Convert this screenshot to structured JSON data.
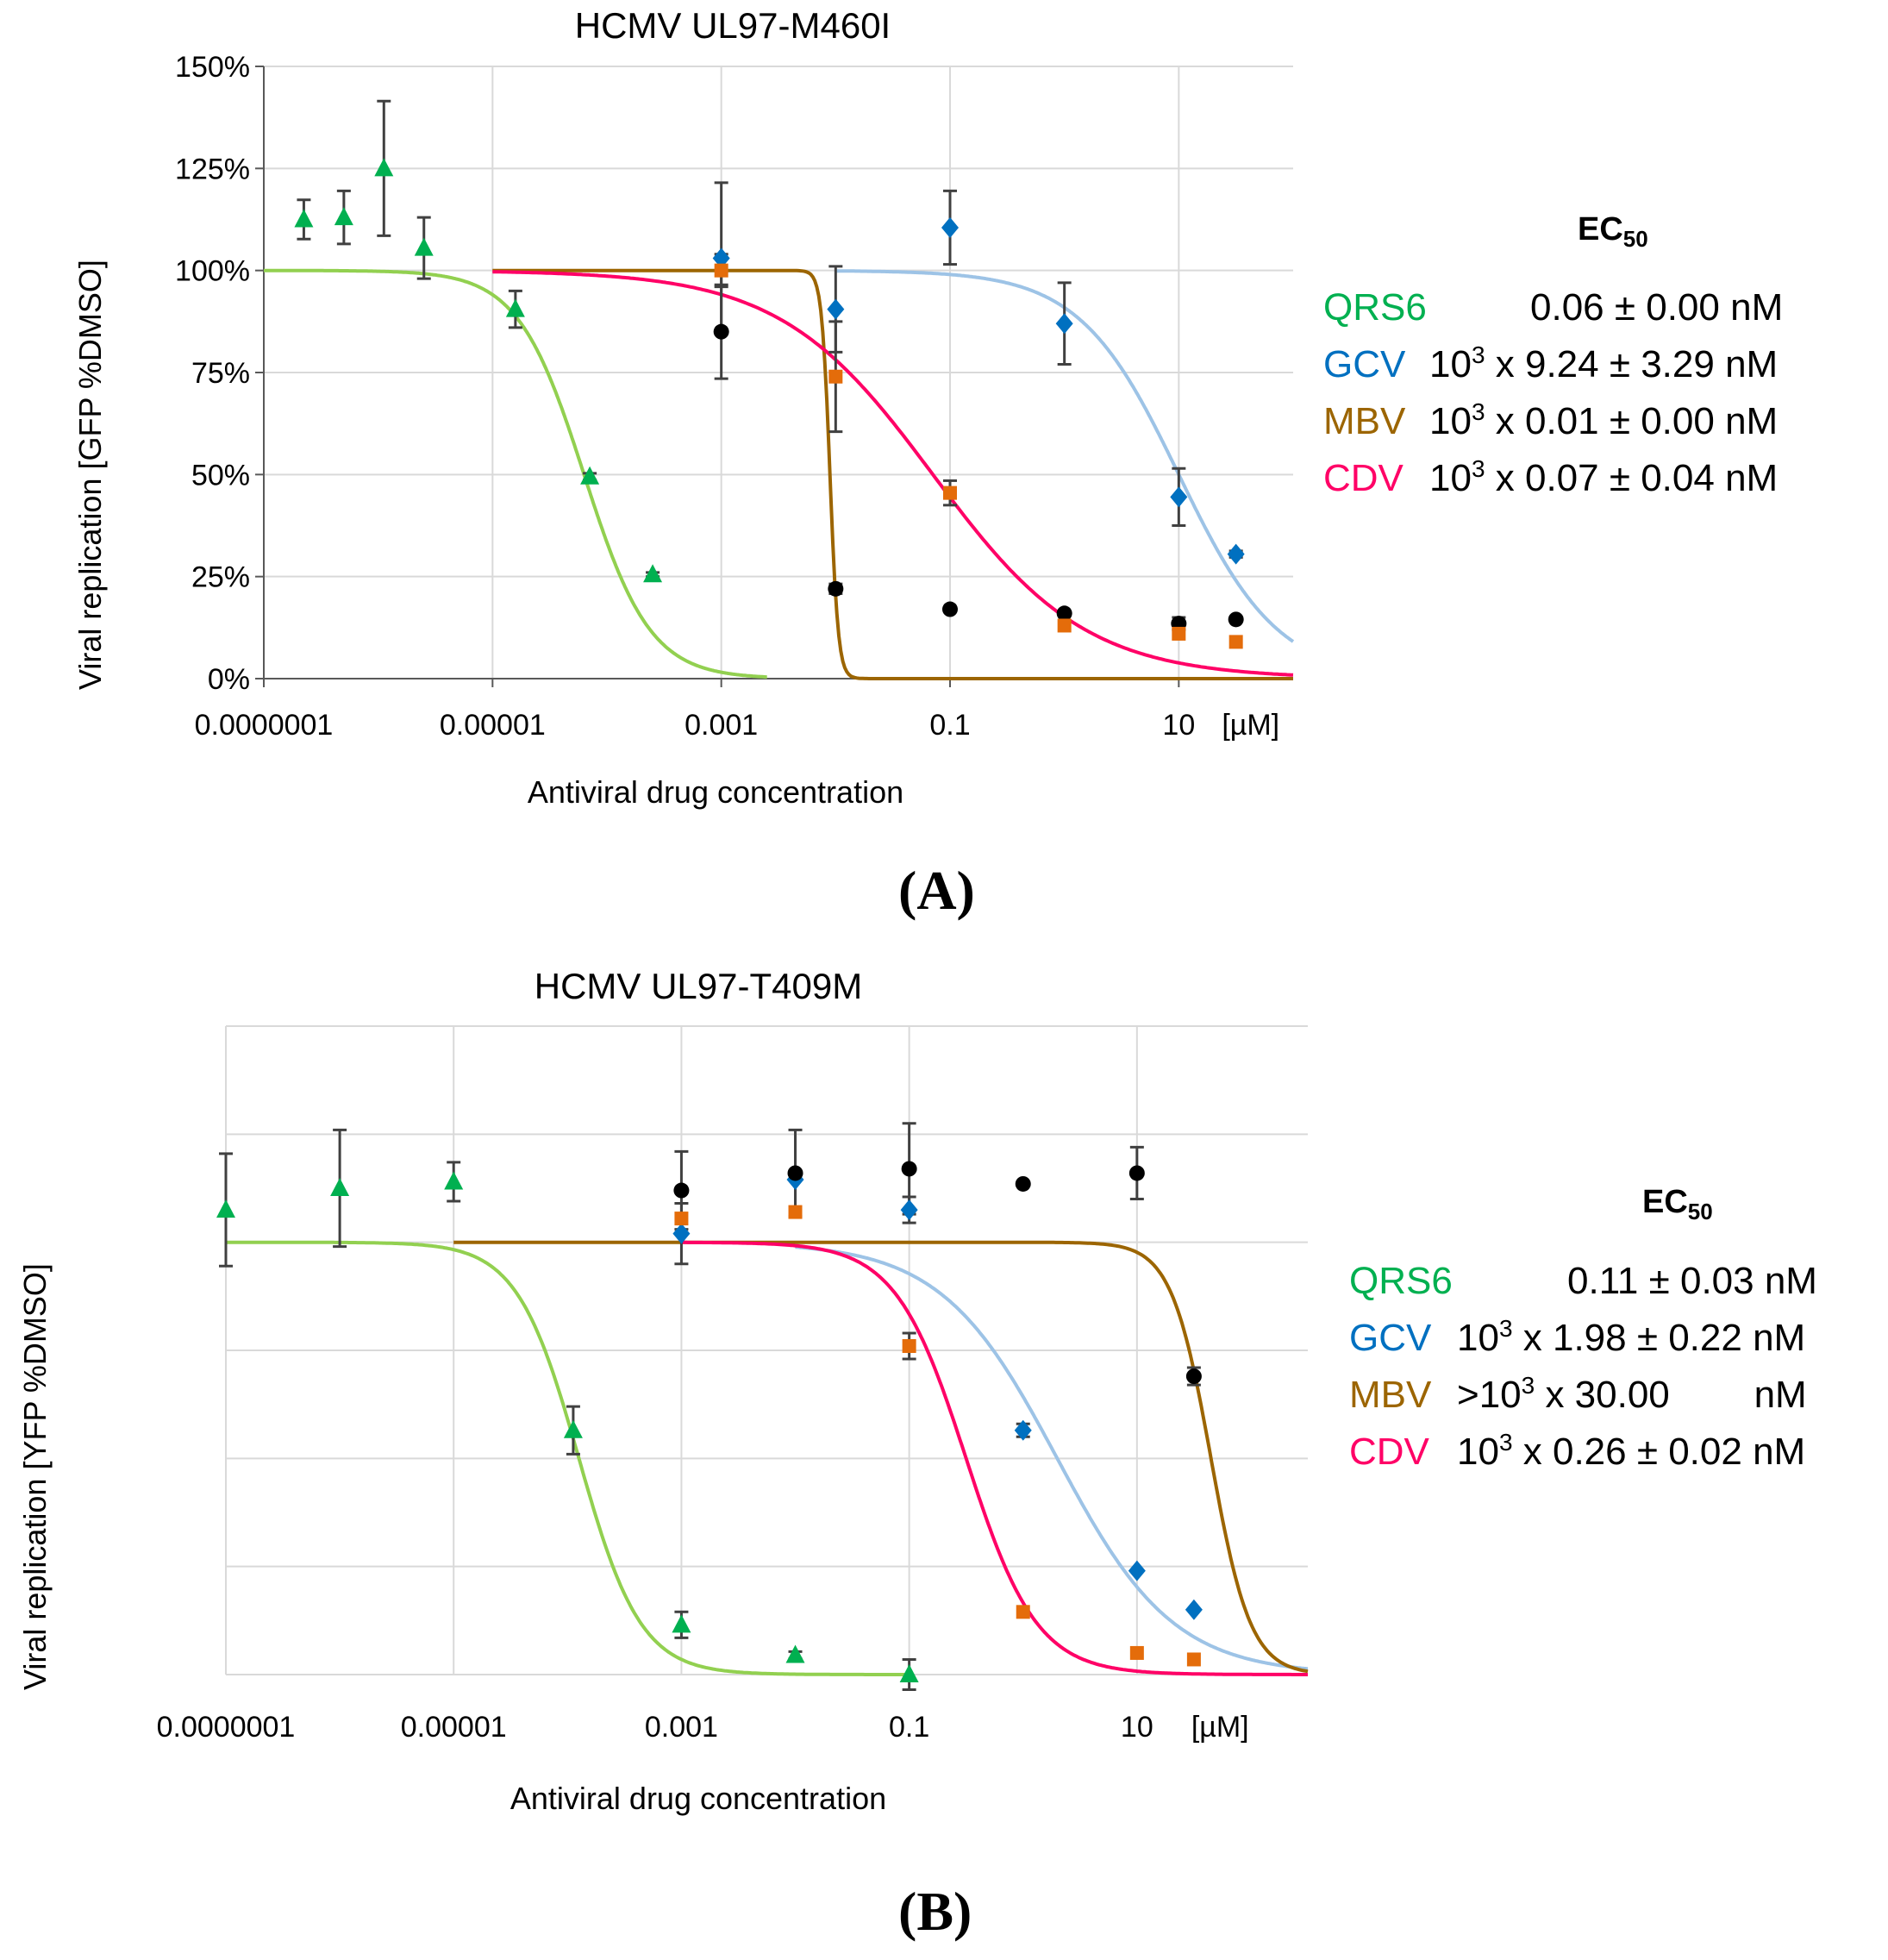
{
  "panels": [
    {
      "label": "(A)",
      "title": "HCMV UL97-M460I",
      "ylabel": "Viral replication [GFP %DMSO]",
      "xlabel": "Antiviral drug concentration",
      "unit": "[µM]",
      "ec50_heading": {
        "text": "EC",
        "sub": "50"
      },
      "legend": [
        {
          "name": "QRS6",
          "color": "#00b050",
          "pre": "",
          "sup": "",
          "value": "0.06 ± 0.00 nM"
        },
        {
          "name": "GCV",
          "color": "#0070c0",
          "pre": "10",
          "sup": "3",
          "value": " x 9.24 ± 3.29 nM"
        },
        {
          "name": "MBV",
          "color": "#9c6500",
          "pre": "10",
          "sup": "3",
          "value": " x 0.01 ± 0.00 nM"
        },
        {
          "name": "CDV",
          "color": "#ff0066",
          "pre": "10",
          "sup": "3",
          "value": " x 0.07 ± 0.04 nM"
        }
      ]
    },
    {
      "label": "(B)",
      "title": "HCMV UL97-T409M",
      "ylabel": "Viral replication [YFP %DMSO]",
      "xlabel": "Antiviral drug concentration",
      "unit": "[µM]",
      "ec50_heading": {
        "text": "EC",
        "sub": "50"
      },
      "legend": [
        {
          "name": "QRS6",
          "color": "#00b050",
          "pre": "",
          "sup": "",
          "value": "0.11 ± 0.03 nM"
        },
        {
          "name": "GCV",
          "color": "#0070c0",
          "pre": "10",
          "sup": "3",
          "value": " x 1.98 ± 0.22 nM"
        },
        {
          "name": "MBV",
          "color": "#9c6500",
          "pre": ">10",
          "sup": "3",
          "value": " x 30.00        nM"
        },
        {
          "name": "CDV",
          "color": "#ff0066",
          "pre": "10",
          "sup": "3",
          "value": " x 0.26 ± 0.02 nM"
        }
      ]
    }
  ],
  "chart_data": [
    {
      "type": "scatter",
      "title": "HCMV UL97-M460I",
      "xlabel": "Antiviral drug concentration",
      "ylabel": "Viral replication [GFP %DMSO]",
      "x_scale": "log10",
      "xlim_log10": [
        -7,
        2
      ],
      "ylim": [
        0,
        150
      ],
      "x_tick_labels": [
        "0.0000001",
        "0.00001",
        "0.001",
        "0.1",
        "10"
      ],
      "x_ticks_log10": [
        -7,
        -5,
        -3,
        -1,
        1
      ],
      "y_tick_labels": [
        "0%",
        "25%",
        "50%",
        "75%",
        "100%",
        "125%",
        "150%"
      ],
      "y_ticks": [
        0,
        25,
        50,
        75,
        100,
        125,
        150
      ],
      "x_unit": "[µM]",
      "series": [
        {
          "name": "QRS6",
          "marker": "triangle",
          "color": "#00b050",
          "fit_color": "#92d050",
          "fit": {
            "top": 100,
            "bottom": 0,
            "log_ec50": -4.2,
            "hill": 1.5,
            "x_start": -7,
            "x_end": -2.6
          },
          "points": [
            {
              "x": -6.65,
              "y": 112.5,
              "err": 4.8
            },
            {
              "x": -6.3,
              "y": 113,
              "err": 6.5
            },
            {
              "x": -5.95,
              "y": 125,
              "err": 16.5
            },
            {
              "x": -5.6,
              "y": 105.5,
              "err": 7.5
            },
            {
              "x": -4.8,
              "y": 90.5,
              "err": 4.5
            },
            {
              "x": -4.15,
              "y": 49.5,
              "err": 0.8
            },
            {
              "x": -3.6,
              "y": 25.5,
              "err": 0.5
            }
          ]
        },
        {
          "name": "GCV",
          "marker": "diamond",
          "color": "#0070c0",
          "fit_color": "#9dc3e6",
          "fit": {
            "top": 100,
            "bottom": 0,
            "log_ec50": 1.0,
            "hill": 1.0,
            "x_start": -2.0,
            "x_end": 2.0
          },
          "points": [
            {
              "x": -3,
              "y": 103,
              "err": 18.5
            },
            {
              "x": -2,
              "y": 90.5,
              "err": 10.5
            },
            {
              "x": -1,
              "y": 110.5,
              "err": 9.0
            },
            {
              "x": 0,
              "y": 87,
              "err": 10.0
            },
            {
              "x": 1,
              "y": 44.5,
              "err": 7.0
            },
            {
              "x": 1.5,
              "y": 30.5,
              "err": 0.8
            }
          ]
        },
        {
          "name": "MBV",
          "marker": "circle",
          "color": "#000000",
          "fit_color": "#9c6500",
          "fit": {
            "top": 100,
            "bottom": 0,
            "log_ec50": -2.05,
            "hill": 12.0,
            "x_start": -5,
            "x_end": 2.0
          },
          "points": [
            {
              "x": -3,
              "y": 85,
              "err": 11.5
            },
            {
              "x": -2,
              "y": 22,
              "err": 1.2
            },
            {
              "x": -1,
              "y": 17,
              "err": 0
            },
            {
              "x": 0,
              "y": 16,
              "err": 0
            },
            {
              "x": 1,
              "y": 13.5,
              "err": 1.5
            },
            {
              "x": 1.5,
              "y": 14.5,
              "err": 0
            }
          ]
        },
        {
          "name": "CDV",
          "marker": "square",
          "color": "#e46c0a",
          "fit_color": "#ff0066",
          "fit": {
            "top": 100,
            "bottom": 0,
            "log_ec50": -1.15,
            "hill": 0.65,
            "x_start": -5,
            "x_end": 2.0
          },
          "points": [
            {
              "x": -3,
              "y": 100,
              "err": 4.0
            },
            {
              "x": -2,
              "y": 74,
              "err": 13.5
            },
            {
              "x": -1,
              "y": 45.5,
              "err": 3.0
            },
            {
              "x": 0,
              "y": 13,
              "err": 0
            },
            {
              "x": 1,
              "y": 11,
              "err": 0
            },
            {
              "x": 1.5,
              "y": 9,
              "err": 0
            }
          ]
        }
      ]
    },
    {
      "type": "scatter",
      "title": "HCMV UL97-T409M",
      "xlabel": "Antiviral drug concentration",
      "ylabel": "Viral replication [YFP %DMSO]",
      "x_scale": "log10",
      "xlim_log10": [
        -7,
        2.5
      ],
      "ylim": [
        0,
        150
      ],
      "x_tick_labels": [
        "0.0000001",
        "0.00001",
        "0.001",
        "0.1",
        "10"
      ],
      "x_ticks_log10": [
        -7,
        -5,
        -3,
        -1,
        1
      ],
      "y_ticks": [
        0,
        25,
        50,
        75,
        100,
        125,
        150
      ],
      "y_tick_labels": [],
      "x_unit": "[µM]",
      "series": [
        {
          "name": "QRS6",
          "marker": "triangle",
          "color": "#00b050",
          "fit_color": "#92d050",
          "fit": {
            "top": 100,
            "bottom": 0,
            "log_ec50": -3.9,
            "hill": 1.6,
            "x_start": -7,
            "x_end": -1.0
          },
          "points": [
            {
              "x": -7,
              "y": 107.5,
              "err": 13
            },
            {
              "x": -6,
              "y": 112.5,
              "err": 13.5
            },
            {
              "x": -5,
              "y": 114,
              "err": 4.5
            },
            {
              "x": -3.95,
              "y": 56.5,
              "err": 5.5
            },
            {
              "x": -3,
              "y": 11.5,
              "err": 3.0
            },
            {
              "x": -2,
              "y": 4.5,
              "err": 0.8
            },
            {
              "x": -1,
              "y": 0,
              "err": 3.5
            }
          ]
        },
        {
          "name": "GCV",
          "marker": "diamond",
          "color": "#0070c0",
          "fit_color": "#9dc3e6",
          "fit": {
            "top": 100,
            "bottom": 0,
            "log_ec50": 0.3,
            "hill": 0.85,
            "x_start": -2.0,
            "x_end": 2.5
          },
          "points": [
            {
              "x": -3,
              "y": 102,
              "err": 7.0
            },
            {
              "x": -2,
              "y": 114.5,
              "err": 0
            },
            {
              "x": -1,
              "y": 107.5,
              "err": 3.0
            },
            {
              "x": 0,
              "y": 56.5,
              "err": 1.5
            },
            {
              "x": 1,
              "y": 24,
              "err": 0
            },
            {
              "x": 1.5,
              "y": 15,
              "err": 0
            }
          ]
        },
        {
          "name": "MBV",
          "marker": "circle",
          "color": "#000000",
          "fit_color": "#9c6500",
          "fit": {
            "top": 100,
            "bottom": 0,
            "log_ec50": 1.65,
            "hill": 2.5,
            "x_start": -5,
            "x_end": 2.5
          },
          "points": [
            {
              "x": -3,
              "y": 112,
              "err": 9.0
            },
            {
              "x": -2,
              "y": 116,
              "err": 10.0
            },
            {
              "x": -1,
              "y": 117,
              "err": 10.5
            },
            {
              "x": 0,
              "y": 113.5,
              "err": 0
            },
            {
              "x": 1,
              "y": 116,
              "err": 6.0
            },
            {
              "x": 1.5,
              "y": 69,
              "err": 2.0
            }
          ]
        },
        {
          "name": "CDV",
          "marker": "square",
          "color": "#e46c0a",
          "fit_color": "#ff0066",
          "fit": {
            "top": 100,
            "bottom": 0,
            "log_ec50": -0.5,
            "hill": 1.4,
            "x_start": -3,
            "x_end": 2.5
          },
          "points": [
            {
              "x": -3,
              "y": 105.5,
              "err": 0
            },
            {
              "x": -2,
              "y": 107,
              "err": 0
            },
            {
              "x": -1,
              "y": 76,
              "err": 3.0
            },
            {
              "x": 0,
              "y": 14.5,
              "err": 0
            },
            {
              "x": 1,
              "y": 5,
              "err": 0
            },
            {
              "x": 1.5,
              "y": 3.5,
              "err": 0
            }
          ]
        }
      ]
    }
  ]
}
